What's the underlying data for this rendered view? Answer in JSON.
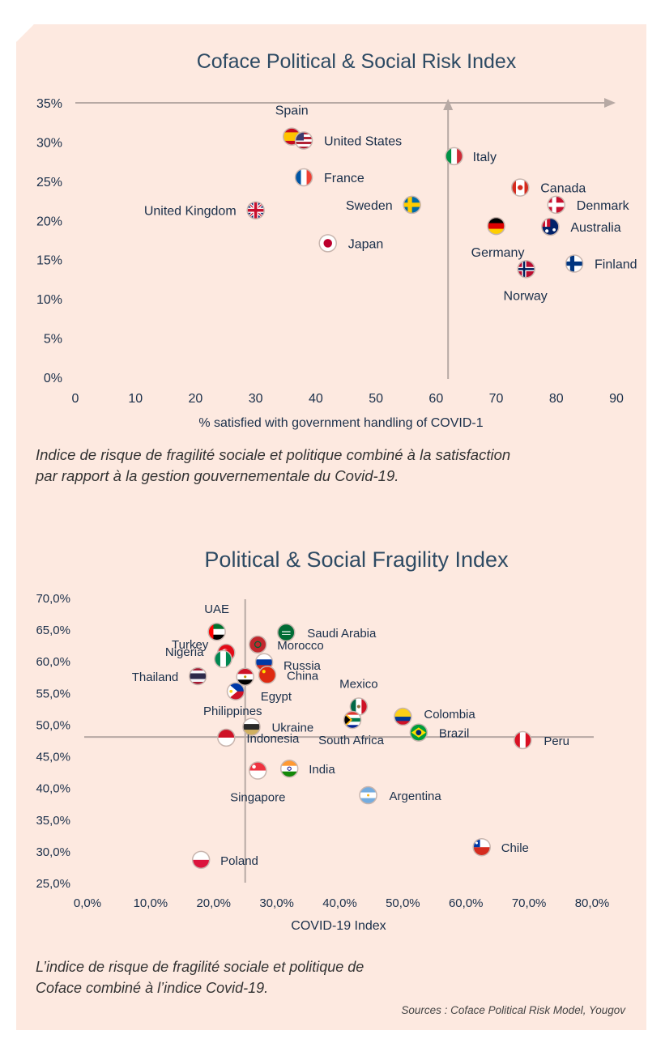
{
  "chart_data": [
    {
      "type": "scatter",
      "title": "Coface Political & Social Risk Index",
      "xlabel": "% satisfied with government handling of COVID-1",
      "ylabel": "",
      "x_ticks": [
        "0",
        "10",
        "20",
        "30",
        "40",
        "50",
        "60",
        "70",
        "80",
        "90"
      ],
      "y_ticks": [
        "0%",
        "5%",
        "10%",
        "15%",
        "20%",
        "25%",
        "30%",
        "35%"
      ],
      "xlim": [
        0,
        90
      ],
      "ylim": [
        0,
        35
      ],
      "reference_lines": {
        "x": 62,
        "y": 35
      },
      "points": [
        {
          "label": "Spain",
          "x": 36,
          "y": 30.7,
          "flag": "spain-flag"
        },
        {
          "label": "United States",
          "x": 38,
          "y": 30.2,
          "flag": "usa-flag"
        },
        {
          "label": "Italy",
          "x": 63,
          "y": 28.2,
          "flag": "italy-flag"
        },
        {
          "label": "France",
          "x": 38,
          "y": 25.5,
          "flag": "france-flag"
        },
        {
          "label": "Canada",
          "x": 74,
          "y": 24.2,
          "flag": "canada-flag"
        },
        {
          "label": "Denmark",
          "x": 80,
          "y": 22.0,
          "flag": "denmark-flag"
        },
        {
          "label": "Sweden",
          "x": 56,
          "y": 22.0,
          "flag": "sweden-flag"
        },
        {
          "label": "United Kingdom",
          "x": 30,
          "y": 21.3,
          "flag": "uk-flag"
        },
        {
          "label": "Germany",
          "x": 70,
          "y": 19.3,
          "flag": "germany-flag"
        },
        {
          "label": "Australia",
          "x": 79,
          "y": 19.2,
          "flag": "australia-flag"
        },
        {
          "label": "Japan",
          "x": 42,
          "y": 17.1,
          "flag": "japan-flag"
        },
        {
          "label": "Finland",
          "x": 83,
          "y": 14.5,
          "flag": "finland-flag"
        },
        {
          "label": "Norway",
          "x": 75,
          "y": 13.8,
          "flag": "norway-flag"
        }
      ]
    },
    {
      "type": "scatter",
      "title": "Political & Social Fragility Index",
      "xlabel": "COVID-19 Index",
      "ylabel": "",
      "x_ticks": [
        "0,0%",
        "10,0%",
        "20,0%",
        "30,0%",
        "40,0%",
        "50,0%",
        "60,0%",
        "70,0%",
        "80,0%"
      ],
      "y_ticks": [
        "25,0%",
        "30,0%",
        "35,0%",
        "40,0%",
        "45,0%",
        "50,0%",
        "55,0%",
        "60,0%",
        "65,0%",
        "70,0%"
      ],
      "xlim": [
        0,
        80
      ],
      "ylim": [
        25,
        70
      ],
      "reference_lines": {
        "x": 25,
        "y": 48
      },
      "points": [
        {
          "label": "UAE",
          "x": 20.5,
          "y": 64.6,
          "flag": "uae-flag"
        },
        {
          "label": "Saudi Arabia",
          "x": 31.5,
          "y": 64.5,
          "flag": "saudi-arabia-flag"
        },
        {
          "label": "Morocco",
          "x": 27.0,
          "y": 62.6,
          "flag": "morocco-flag"
        },
        {
          "label": "Turkey",
          "x": 22.0,
          "y": 61.3,
          "flag": "turkey-flag"
        },
        {
          "label": "Nigeria",
          "x": 21.5,
          "y": 60.3,
          "flag": "nigeria-flag"
        },
        {
          "label": "Russia",
          "x": 28.0,
          "y": 59.8,
          "flag": "russia-flag"
        },
        {
          "label": "China",
          "x": 28.5,
          "y": 57.8,
          "flag": "china-flag"
        },
        {
          "label": "Thailand",
          "x": 17.5,
          "y": 57.6,
          "flag": "thailand-flag"
        },
        {
          "label": "Egypt",
          "x": 25.0,
          "y": 57.5,
          "flag": "egypt-flag"
        },
        {
          "label": "Philippines",
          "x": 23.5,
          "y": 55.2,
          "flag": "philippines-flag"
        },
        {
          "label": "Mexico",
          "x": 43.0,
          "y": 52.8,
          "flag": "mexico-flag"
        },
        {
          "label": "Colombia",
          "x": 50.0,
          "y": 51.2,
          "flag": "colombia-flag"
        },
        {
          "label": "South Africa",
          "x": 42.0,
          "y": 50.7,
          "flag": "south-africa-flag"
        },
        {
          "label": "Ukraine",
          "x": 26.0,
          "y": 49.6,
          "flag": "ukraine-flag"
        },
        {
          "label": "Brazil",
          "x": 52.5,
          "y": 48.7,
          "flag": "brazil-flag"
        },
        {
          "label": "Indonesia",
          "x": 22.0,
          "y": 47.9,
          "flag": "indonesia-flag"
        },
        {
          "label": "Peru",
          "x": 69.0,
          "y": 47.5,
          "flag": "peru-flag"
        },
        {
          "label": "India",
          "x": 32.0,
          "y": 43.0,
          "flag": "india-flag"
        },
        {
          "label": "Singapore",
          "x": 27.0,
          "y": 42.7,
          "flag": "singapore-flag"
        },
        {
          "label": "Argentina",
          "x": 44.5,
          "y": 38.8,
          "flag": "argentina-flag"
        },
        {
          "label": "Chile",
          "x": 62.5,
          "y": 30.6,
          "flag": "chile-flag"
        },
        {
          "label": "Poland",
          "x": 18.0,
          "y": 28.6,
          "flag": "poland-flag"
        }
      ]
    }
  ],
  "captions": {
    "first_line1": "Indice de risque de fragilité sociale et politique combiné à la satisfaction",
    "first_line2": "par rapport à la gestion gouvernementale du Covid-19.",
    "second_line1": "L’indice de risque de fragilité sociale et politique de",
    "second_line2": "Coface combiné à l’indice Covid-19.",
    "source": "Sources : Coface Political Risk Model, Yougov"
  },
  "colors": {
    "background": "#fde9e0",
    "axis": "#b7a9a4",
    "title": "#2d4a63",
    "text": "#1a2f4a"
  }
}
